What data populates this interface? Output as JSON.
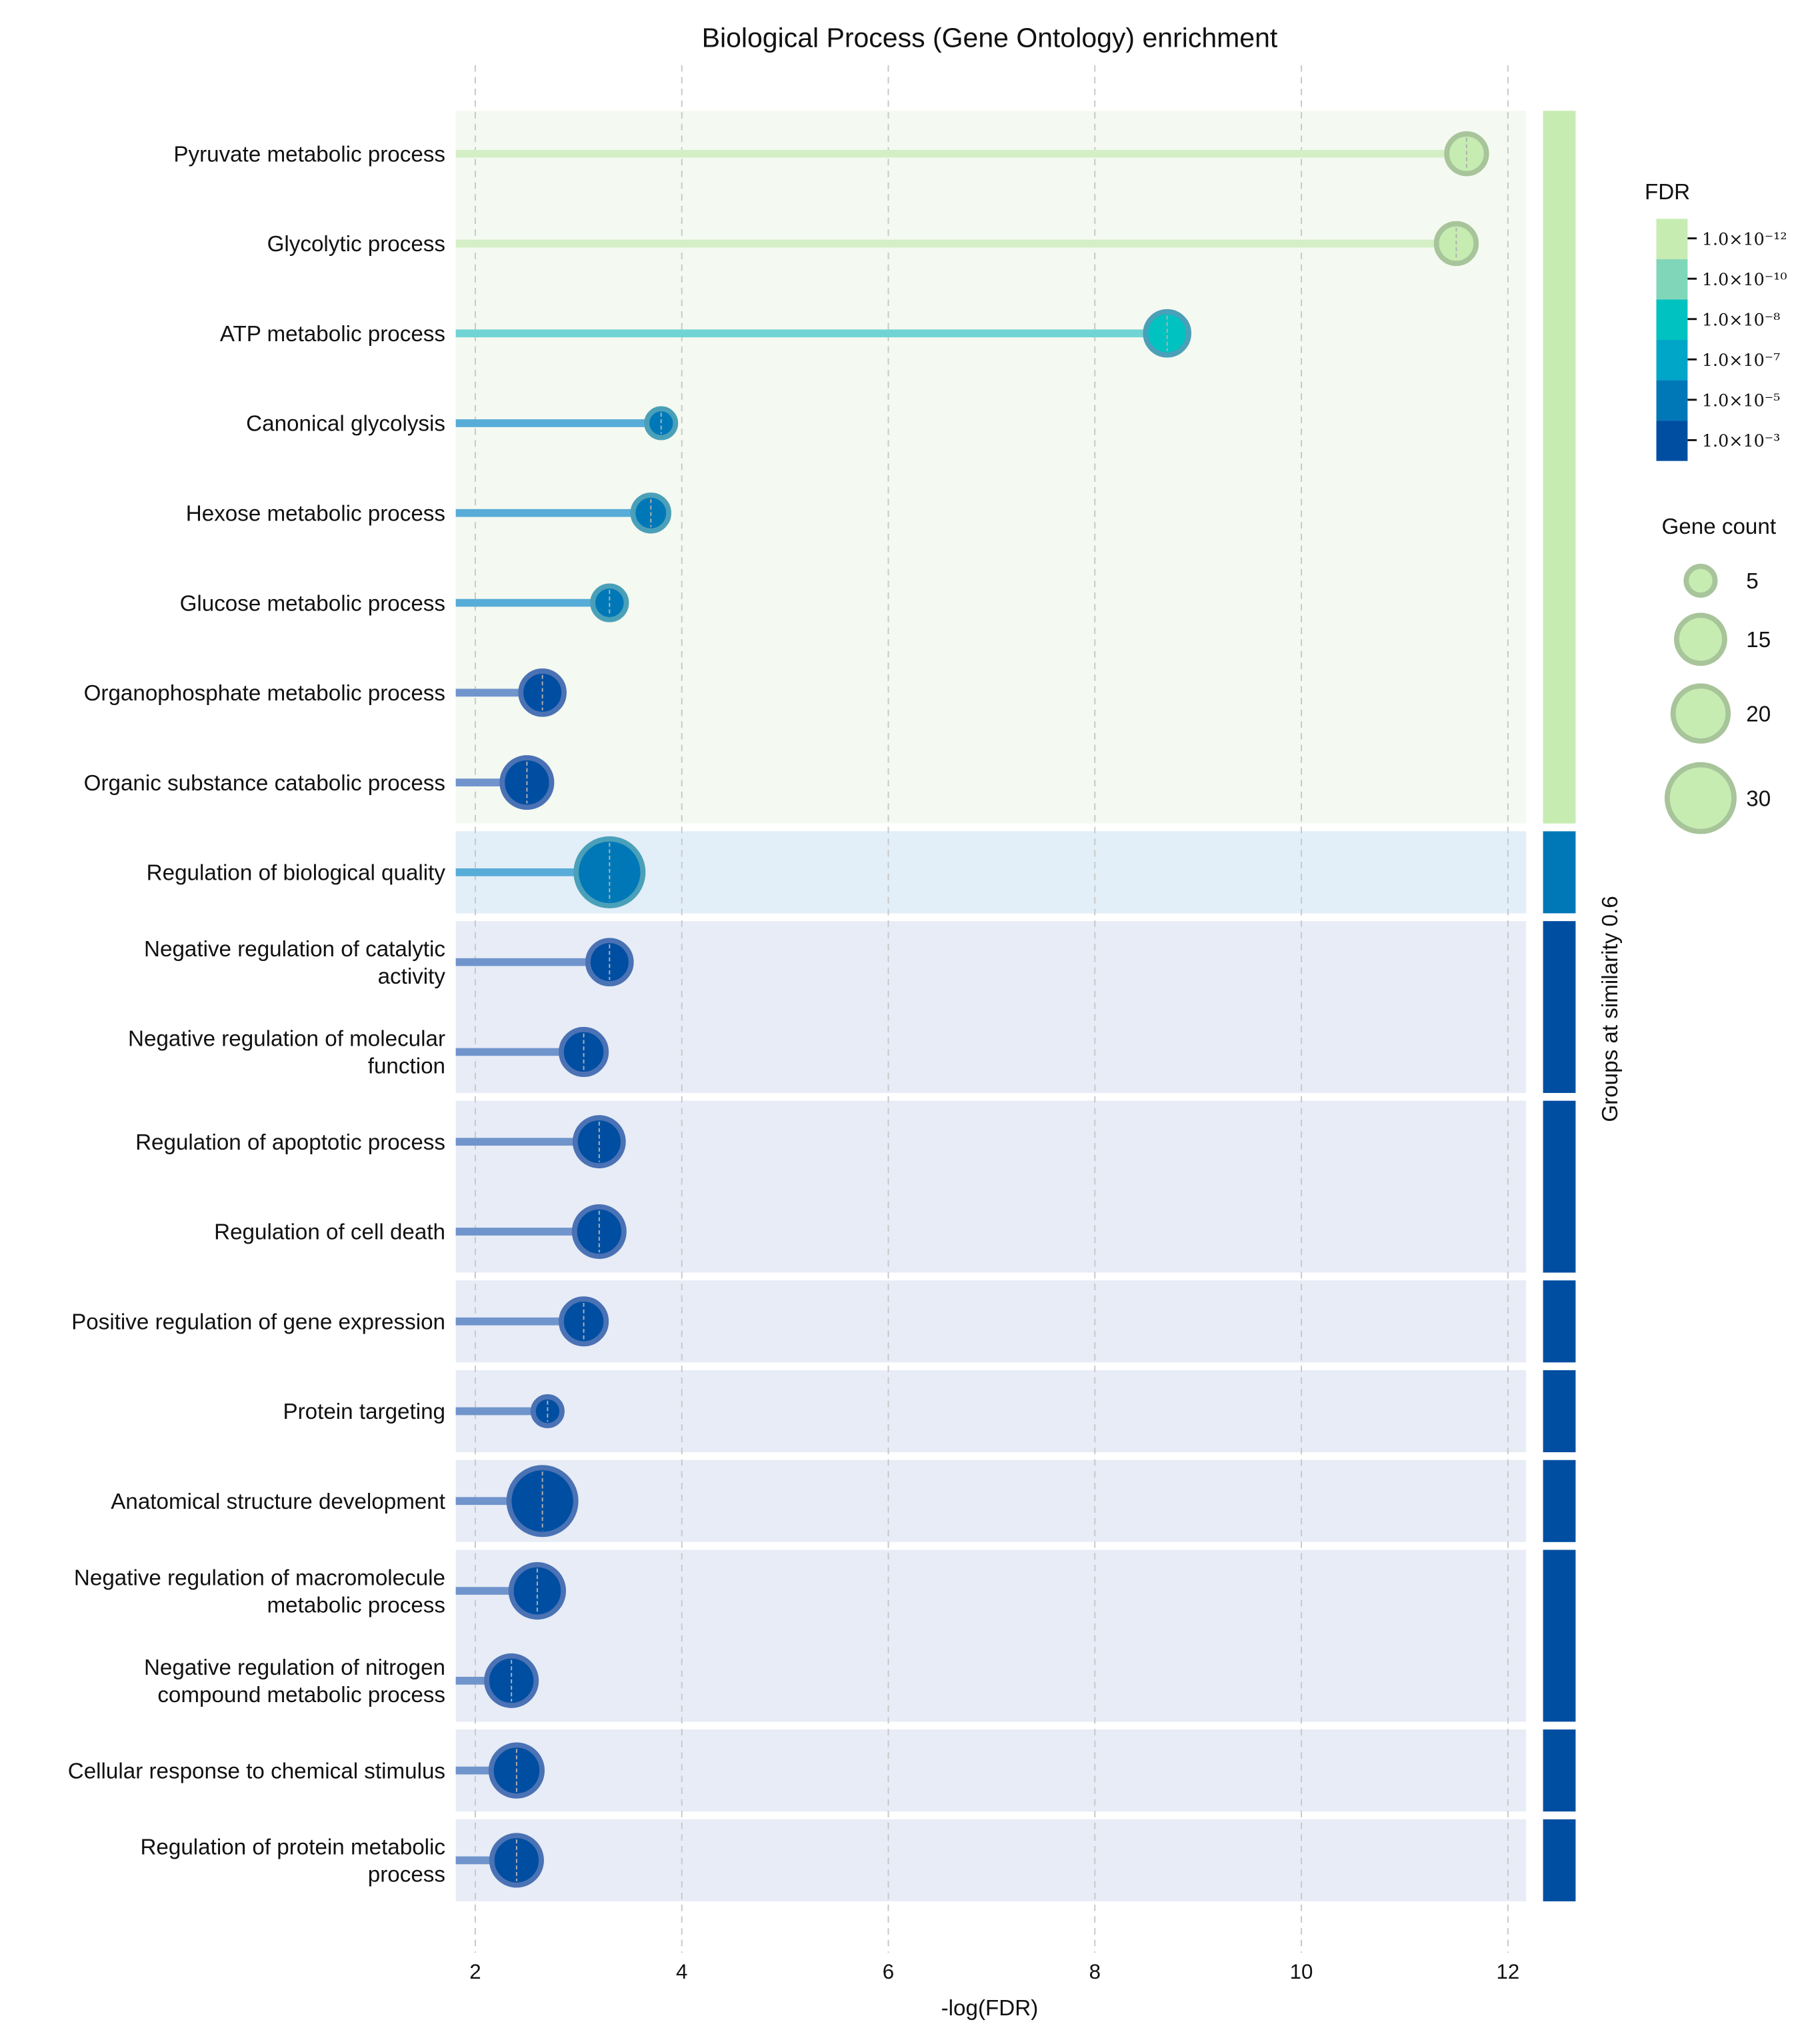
{
  "chart_data": {
    "type": "scatter",
    "subtype": "lollipop",
    "title": "Biological Process (Gene Ontology) enrichment",
    "xlabel": "-log(FDR)",
    "xlim": [
      1.8,
      12.2
    ],
    "xticks": [
      2,
      4,
      6,
      8,
      10,
      12
    ],
    "grid": "vertical dashed",
    "colorbar": {
      "title": "FDR",
      "ticks": [
        "1.0×10⁻¹²",
        "1.0×10⁻¹⁰",
        "1.0×10⁻⁸",
        "1.0×10⁻⁷",
        "1.0×10⁻⁵",
        "1.0×10⁻³"
      ],
      "colors": [
        "#c6ecb2",
        "#80d6b8",
        "#00c2c0",
        "#00a6c8",
        "#0078b8",
        "#004ea2"
      ]
    },
    "size_legend": {
      "title": "Gene count",
      "values": [
        5,
        15,
        20,
        30
      ]
    },
    "group_axis_label": "Groups at similarity 0.6",
    "rows": [
      {
        "label": [
          "Pyruvate metabolic process"
        ],
        "x": 11.6,
        "count": 10,
        "fdr_level": 0,
        "group": 0
      },
      {
        "label": [
          "Glycolytic process"
        ],
        "x": 11.5,
        "count": 10,
        "fdr_level": 0,
        "group": 0
      },
      {
        "label": [
          "ATP metabolic process"
        ],
        "x": 8.7,
        "count": 12,
        "fdr_level": 2,
        "group": 0
      },
      {
        "label": [
          "Canonical glycolysis"
        ],
        "x": 3.8,
        "count": 5,
        "fdr_level": 4,
        "group": 0
      },
      {
        "label": [
          "Hexose metabolic process"
        ],
        "x": 3.7,
        "count": 8,
        "fdr_level": 4,
        "group": 0
      },
      {
        "label": [
          "Glucose metabolic process"
        ],
        "x": 3.3,
        "count": 7,
        "fdr_level": 4,
        "group": 0
      },
      {
        "label": [
          "Organophosphate metabolic process"
        ],
        "x": 2.65,
        "count": 12,
        "fdr_level": 5,
        "group": 0
      },
      {
        "label": [
          "Organic substance catabolic process"
        ],
        "x": 2.5,
        "count": 16,
        "fdr_level": 5,
        "group": 0
      },
      {
        "label": [
          "Regulation of biological quality"
        ],
        "x": 3.3,
        "count": 30,
        "fdr_level": 4,
        "group": 1
      },
      {
        "label": [
          "Negative regulation of catalytic",
          "activity"
        ],
        "x": 3.3,
        "count": 12,
        "fdr_level": 5,
        "group": 2
      },
      {
        "label": [
          "Negative regulation of molecular",
          "function"
        ],
        "x": 3.05,
        "count": 13,
        "fdr_level": 5,
        "group": 2
      },
      {
        "label": [
          "Regulation of apoptotic process"
        ],
        "x": 3.2,
        "count": 15,
        "fdr_level": 5,
        "group": 3
      },
      {
        "label": [
          "Regulation of cell death"
        ],
        "x": 3.2,
        "count": 16,
        "fdr_level": 5,
        "group": 3
      },
      {
        "label": [
          "Positive regulation of gene expression"
        ],
        "x": 3.05,
        "count": 13,
        "fdr_level": 5,
        "group": 4
      },
      {
        "label": [
          "Protein targeting"
        ],
        "x": 2.7,
        "count": 5,
        "fdr_level": 5,
        "group": 5
      },
      {
        "label": [
          "Anatomical structure development"
        ],
        "x": 2.65,
        "count": 30,
        "fdr_level": 5,
        "group": 6
      },
      {
        "label": [
          "Negative regulation of macromolecule",
          "metabolic process"
        ],
        "x": 2.6,
        "count": 18,
        "fdr_level": 5,
        "group": 7
      },
      {
        "label": [
          "Negative regulation of nitrogen",
          "compound metabolic process"
        ],
        "x": 2.35,
        "count": 16,
        "fdr_level": 5,
        "group": 7
      },
      {
        "label": [
          "Cellular response to chemical stimulus"
        ],
        "x": 2.4,
        "count": 17,
        "fdr_level": 5,
        "group": 8
      },
      {
        "label": [
          "Regulation of protein metabolic",
          "process"
        ],
        "x": 2.4,
        "count": 16,
        "fdr_level": 5,
        "group": 9
      }
    ],
    "groups": [
      {
        "rows": [
          0,
          7
        ],
        "color": "#c6ecb2",
        "bg": "#f4f9f1"
      },
      {
        "rows": [
          8,
          8
        ],
        "color": "#0078b8",
        "bg": "#e2eef8"
      },
      {
        "rows": [
          9,
          10
        ],
        "color": "#004ea2",
        "bg": "#e7ecf6"
      },
      {
        "rows": [
          11,
          12
        ],
        "color": "#004ea2",
        "bg": "#e7ecf6"
      },
      {
        "rows": [
          13,
          13
        ],
        "color": "#004ea2",
        "bg": "#e7ecf6"
      },
      {
        "rows": [
          14,
          14
        ],
        "color": "#004ea2",
        "bg": "#e7ecf6"
      },
      {
        "rows": [
          15,
          15
        ],
        "color": "#004ea2",
        "bg": "#e7ecf6"
      },
      {
        "rows": [
          16,
          17
        ],
        "color": "#004ea2",
        "bg": "#e7ecf6"
      },
      {
        "rows": [
          18,
          18
        ],
        "color": "#004ea2",
        "bg": "#e7ecf6"
      },
      {
        "rows": [
          19,
          19
        ],
        "color": "#004ea2",
        "bg": "#e7ecf6"
      }
    ],
    "line_colors": [
      "#d4efc6",
      "#a0e0cc",
      "#70d4d4",
      "#5cbcd8",
      "#58acd8",
      "#7094cc"
    ]
  }
}
